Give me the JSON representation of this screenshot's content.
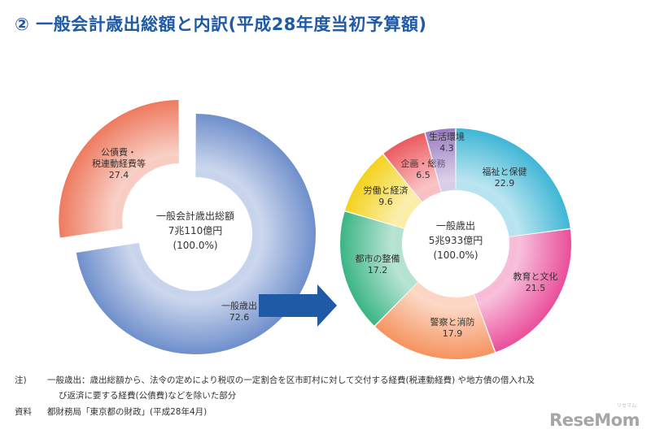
{
  "title": "② 一般会計歳出総額と内訳(平成28年度当初予算額)",
  "chart_data": [
    {
      "type": "pie",
      "center_label": [
        "一般会計歳出総額",
        "7兆110億円",
        "(100.0%)"
      ],
      "slices": [
        {
          "label": "一般歳出",
          "value": 72.6,
          "color": "#6f8fcc"
        },
        {
          "label": "公債費・税連動経費等",
          "value": 27.4,
          "color": "#ee7a5f"
        }
      ]
    },
    {
      "type": "pie",
      "center_label": [
        "一般歳出",
        "5兆933億円",
        "(100.0%)"
      ],
      "slices": [
        {
          "label": "福祉と保健",
          "value": 22.9,
          "color": "#3fb6d6"
        },
        {
          "label": "教育と文化",
          "value": 21.5,
          "color": "#ea4e9a"
        },
        {
          "label": "警察と消防",
          "value": 17.9,
          "color": "#f6935f"
        },
        {
          "label": "都市の整備",
          "value": 17.2,
          "color": "#3bb585"
        },
        {
          "label": "労働と経済",
          "value": 9.6,
          "color": "#f4d21d"
        },
        {
          "label": "企画・総務",
          "value": 6.5,
          "color": "#ec5a5f"
        },
        {
          "label": "生活環境",
          "value": 4.3,
          "color": "#9a7cc0"
        }
      ]
    }
  ],
  "notes": {
    "note_label": "注)",
    "note_line1": "一般歳出：歳出総額から、法令の定めにより税収の一定割合を区市町村に対して交付する経費(税連動経費) や地方債の借入れ及",
    "note_line2": "び返済に要する経費(公債費)などを除いた部分",
    "source_label": "資料",
    "source_text": "都財務局「東京都の財政」(平成28年4月)"
  },
  "logo": {
    "text": "ReseMom",
    "sub": "リセマム"
  }
}
